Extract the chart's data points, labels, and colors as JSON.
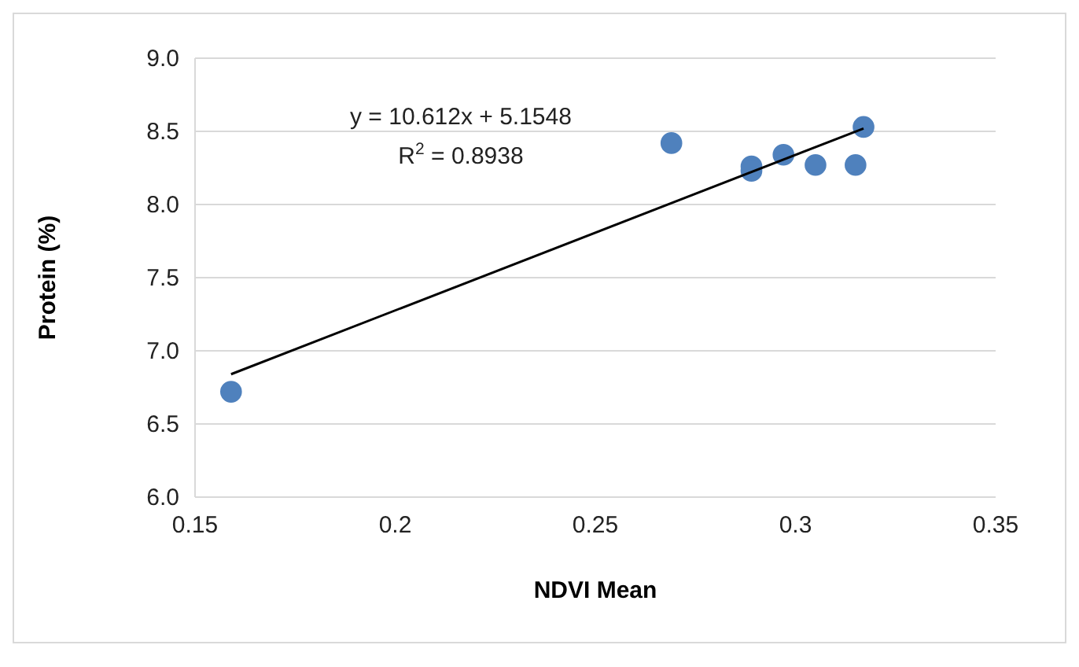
{
  "chart_data": {
    "type": "scatter",
    "xlabel": "NDVI Mean",
    "ylabel": "Protein (%)",
    "xlim": [
      0.15,
      0.35
    ],
    "xticks": [
      {
        "value": 0.15,
        "label": "0.15"
      },
      {
        "value": 0.2,
        "label": "0.2"
      },
      {
        "value": 0.25,
        "label": "0.25"
      },
      {
        "value": 0.3,
        "label": "0.3"
      },
      {
        "value": 0.35,
        "label": "0.35"
      }
    ],
    "ylim": [
      6,
      9
    ],
    "yticks": [
      {
        "value": 6,
        "label": "6.0"
      },
      {
        "value": 6.5,
        "label": "6.5"
      },
      {
        "value": 7,
        "label": "7.0"
      },
      {
        "value": 7.5,
        "label": "7.5"
      },
      {
        "value": 8,
        "label": "8.0"
      },
      {
        "value": 8.5,
        "label": "8.5"
      },
      {
        "value": 9,
        "label": "9.0"
      }
    ],
    "grid": "y",
    "marker": "circle",
    "series": [
      {
        "color": "#4f81bd",
        "x": [
          0.159,
          0.269,
          0.289,
          0.289,
          0.297,
          0.305,
          0.315,
          0.317
        ],
        "values": [
          6.72,
          8.42,
          8.26,
          8.23,
          8.34,
          8.27,
          8.27,
          8.53
        ]
      },
      {
        "type": "line",
        "color": "#000000",
        "marker": "none",
        "line_style": "solid",
        "x": [
          0.159,
          0.317
        ],
        "values": [
          6.84,
          8.52
        ]
      }
    ],
    "annotations": [
      "y = 10.612x + 5.1548",
      "R$^{2}$ = 0.8938"
    ]
  }
}
